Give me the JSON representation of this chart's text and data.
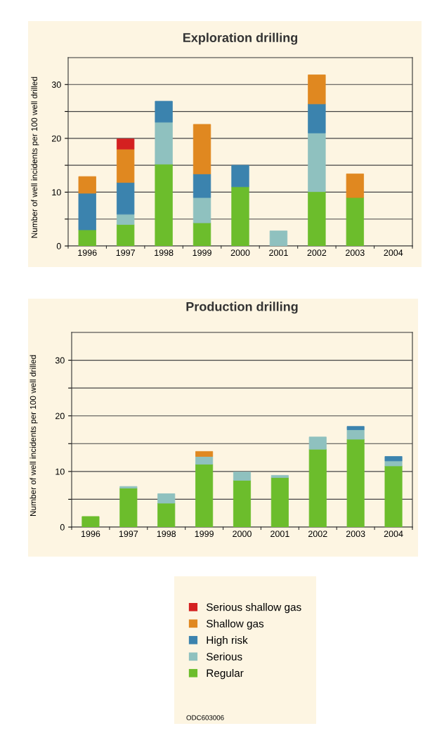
{
  "chart_data": [
    {
      "type": "bar",
      "title": "Exploration drilling",
      "ylabel": "Number of well incidents per 100 well drilled",
      "stacked": true,
      "categories": [
        "1996",
        "1997",
        "1998",
        "1999",
        "2000",
        "2001",
        "2002",
        "2003",
        "2004"
      ],
      "series": [
        {
          "name": "Regular",
          "color": "#6cbd2c",
          "values": [
            3,
            4,
            15.2,
            4.3,
            11,
            null,
            10.1,
            9,
            null
          ]
        },
        {
          "name": "Serious",
          "color": "#8fc1bf",
          "values": [
            null,
            1.9,
            7.8,
            4.7,
            null,
            2.8,
            10.9,
            null,
            null
          ]
        },
        {
          "name": "High risk",
          "color": "#3b83ae",
          "values": [
            6.8,
            5.9,
            3.9,
            4.4,
            4,
            null,
            5.4,
            null,
            null
          ]
        },
        {
          "name": "Shallow gas",
          "color": "#e08820",
          "values": [
            3.1,
            6.2,
            null,
            9.2,
            null,
            null,
            5.4,
            4.4,
            null
          ]
        },
        {
          "name": "Serious shallow gas",
          "color": "#d42020",
          "values": [
            null,
            1.9,
            null,
            null,
            null,
            null,
            null,
            null,
            null
          ]
        }
      ],
      "ylim": [
        0,
        35
      ],
      "yticks": [
        0,
        {
          "value": 5,
          "label": null
        },
        10,
        {
          "value": 15,
          "label": null
        },
        20,
        {
          "value": 25,
          "label": null
        },
        30
      ],
      "grid": "y",
      "legend": "bottom"
    },
    {
      "type": "bar",
      "title": "Production drilling",
      "ylabel": "Number of well incidents per 100 well drilled",
      "stacked": true,
      "categories": [
        "1996",
        "1997",
        "1998",
        "1999",
        "2000",
        "2001",
        "2002",
        "2003",
        "2004"
      ],
      "series": [
        {
          "color": "#6cbd2c",
          "values": [
            1.9,
            7.0,
            4.3,
            11.3,
            8.4,
            8.9,
            14.0,
            15.8,
            11.0
          ]
        },
        {
          "color": "#8fc1bf",
          "values": [
            null,
            0.3,
            1.7,
            1.4,
            1.5,
            0.4,
            2.2,
            1.7,
            0.9
          ]
        },
        {
          "color": "#3b83ae",
          "values": [
            null,
            null,
            null,
            null,
            null,
            null,
            null,
            0.6,
            0.8
          ]
        },
        {
          "color": "#e08820",
          "values": [
            null,
            null,
            null,
            0.9,
            null,
            null,
            null,
            null,
            null
          ]
        }
      ],
      "ylim": [
        0,
        35
      ],
      "yticks": [
        0,
        {
          "value": 5,
          "label": null
        },
        10,
        {
          "value": 15,
          "label": null
        },
        20,
        {
          "value": 25,
          "label": null
        },
        30
      ],
      "grid": "y",
      "annotations": [
        "ODC603006"
      ]
    }
  ]
}
